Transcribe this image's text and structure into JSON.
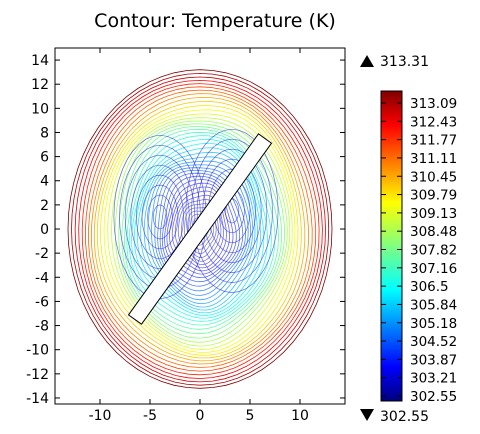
{
  "chart_data": {
    "type": "contour",
    "title": "Contour: Temperature (K)",
    "xlabel": "",
    "ylabel": "",
    "xlim": [
      -14.5,
      14.5
    ],
    "ylim": [
      -14.5,
      15.0
    ],
    "x_ticks": [
      -10,
      -5,
      0,
      5,
      10
    ],
    "y_ticks": [
      14,
      12,
      10,
      8,
      6,
      4,
      2,
      0,
      -2,
      -4,
      -6,
      -8,
      -10,
      -12,
      -14
    ],
    "domain": {
      "shape": "near-circular disk",
      "radius": 13.2
    },
    "inclusion": {
      "shape": "rectangle",
      "from": [
        -6.5,
        -7.5
      ],
      "to": [
        6.5,
        7.5
      ],
      "width": 1.6
    },
    "range_max_label": "313.31",
    "range_min_label": "302.55",
    "colorbar_levels": [
      "313.09",
      "312.43",
      "311.77",
      "311.11",
      "310.45",
      "309.79",
      "309.13",
      "308.48",
      "307.82",
      "307.16",
      "306.5",
      "305.84",
      "305.18",
      "304.52",
      "303.87",
      "303.21",
      "302.55"
    ],
    "max_marker": "up-triangle",
    "min_marker": "down-triangle",
    "colormap": "rainbow",
    "grid": false
  }
}
